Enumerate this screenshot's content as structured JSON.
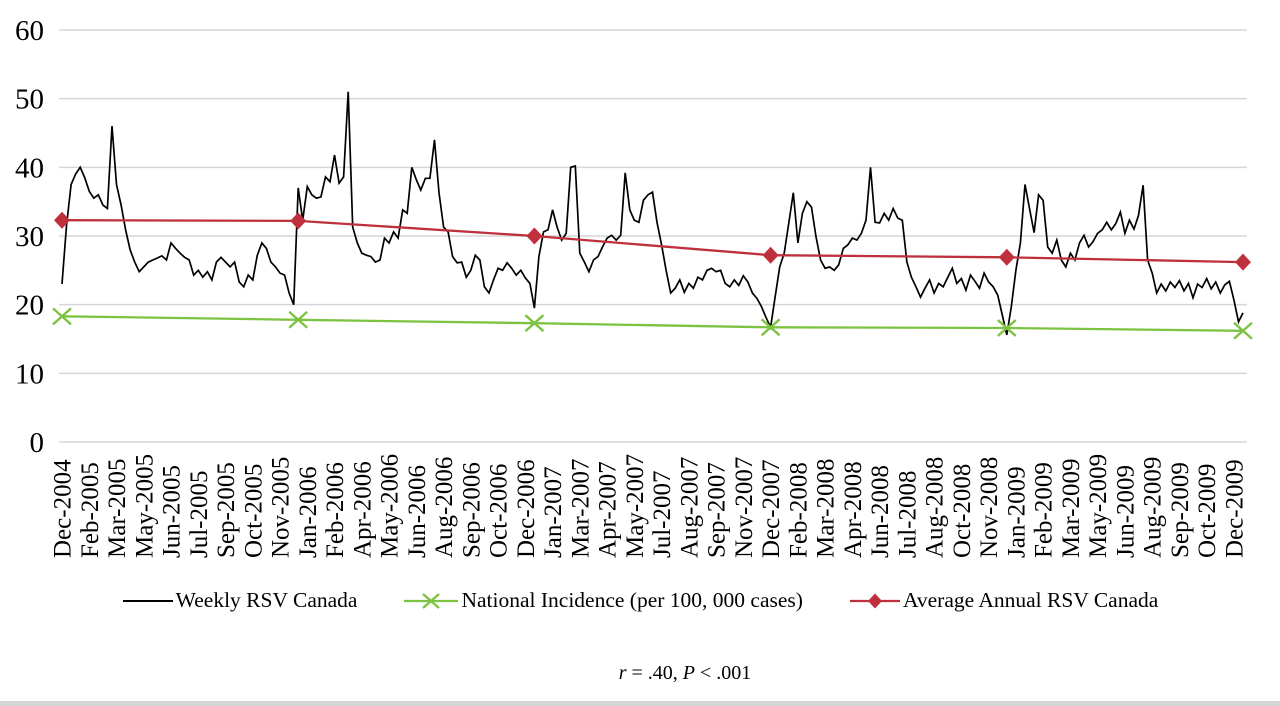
{
  "window": {
    "background": "#FFFFFF",
    "bottom_strip_color": "#D5D5D5"
  },
  "chart_data": {
    "type": "line",
    "title": "",
    "xlabel": "",
    "ylabel": "",
    "ylim": [
      0,
      60
    ],
    "y_ticks": [
      0,
      10,
      20,
      30,
      40,
      50,
      60
    ],
    "grid": true,
    "gridline_color": "#D6D6D6",
    "legend_position": "bottom",
    "x_unit": "week",
    "weeks_span": 260,
    "x_tick_every_weeks": 6,
    "x_tick_labels": [
      "Dec-2004",
      "Feb-2005",
      "Mar-2005",
      "May-2005",
      "Jun-2005",
      "Jul-2005",
      "Sep-2005",
      "Oct-2005",
      "Nov-2005",
      "Jan-2006",
      "Feb-2006",
      "Apr-2006",
      "May-2006",
      "Jun-2006",
      "Aug-2006",
      "Sep-2006",
      "Oct-2006",
      "Dec-2006",
      "Jan-2007",
      "Mar-2007",
      "Apr-2007",
      "May-2007",
      "Jul-2007",
      "Aug-2007",
      "Sep-2007",
      "Nov-2007",
      "Dec-2007",
      "Feb-2008",
      "Mar-2008",
      "Apr-2008",
      "Jun-2008",
      "Jul-2008",
      "Aug-2008",
      "Oct-2008",
      "Nov-2008",
      "Jan-2009",
      "Feb-2009",
      "Mar-2009",
      "May-2009",
      "Jun-2009",
      "Aug-2009",
      "Sep-2009",
      "Oct-2009",
      "Dec-2009"
    ],
    "series": [
      {
        "name": "Weekly RSV Canada",
        "color": "#000000",
        "marker": "none",
        "line_width": 1.7,
        "values": [
          23,
          31.5,
          37.5,
          39,
          40,
          38.5,
          36.5,
          35.5,
          36,
          34.5,
          34,
          46,
          37.5,
          34.5,
          30.9,
          28,
          26.2,
          24.8,
          25.5,
          26.2,
          26.5,
          26.8,
          27.1,
          26.5,
          29,
          28.2,
          27.5,
          26.9,
          26.5,
          24.3,
          25,
          24,
          24.8,
          23.6,
          26.2,
          26.9,
          26.2,
          25.5,
          26.2,
          23.3,
          22.6,
          24.3,
          23.6,
          27.2,
          29,
          28.2,
          26.2,
          25.5,
          24.6,
          24.3,
          21.7,
          20,
          37,
          32.3,
          37.2,
          36,
          35.5,
          35.7,
          38.6,
          37.9,
          41.8,
          37.7,
          38.6,
          51,
          31.3,
          29,
          27.5,
          27.2,
          27,
          26.2,
          26.5,
          29.7,
          29,
          30.6,
          29.7,
          33.8,
          33.3,
          40,
          38.2,
          36.7,
          38.4,
          38.4,
          44,
          36.3,
          31.3,
          30.6,
          27,
          26.1,
          26.2,
          24,
          25,
          27.2,
          26.5,
          22.6,
          21.7,
          23.6,
          25.3,
          25,
          26.1,
          25.3,
          24.3,
          25,
          23.9,
          23.1,
          19.5,
          27,
          30.6,
          30.9,
          33.8,
          31.3,
          29.4,
          30.4,
          40,
          40.2,
          27.5,
          26.2,
          24.8,
          26.5,
          27,
          28.4,
          29.7,
          30.1,
          29.4,
          30.1,
          39.2,
          33.8,
          32.3,
          32,
          35.2,
          36,
          36.4,
          32,
          28.7,
          25,
          21.7,
          22.4,
          23.6,
          21.8,
          23.1,
          22.4,
          24,
          23.6,
          25,
          25.3,
          24.8,
          25,
          23.1,
          22.6,
          23.6,
          22.8,
          24.2,
          23.3,
          21.7,
          20.9,
          19.7,
          18.1,
          16.7,
          21.1,
          25.5,
          27.5,
          31.9,
          36.3,
          29,
          33.3,
          35,
          34.2,
          29.9,
          26.5,
          25.3,
          25.5,
          25,
          25.8,
          28.2,
          28.7,
          29.7,
          29.4,
          30.4,
          32.3,
          40,
          32,
          31.9,
          33.3,
          32.3,
          34,
          32.6,
          32.3,
          26.2,
          24,
          22.6,
          21.1,
          22.4,
          23.6,
          21.7,
          23.1,
          22.6,
          24,
          25.3,
          23.1,
          23.8,
          22.1,
          24.3,
          23.4,
          22.4,
          24.6,
          23.3,
          22.6,
          21.4,
          18.5,
          15.6,
          19.7,
          25,
          29,
          37.5,
          34,
          30.5,
          36,
          35.2,
          28.4,
          27.5,
          29.4,
          26.5,
          25.5,
          27.5,
          26.5,
          29,
          30.1,
          28.4,
          29.2,
          30.4,
          30.9,
          32,
          30.9,
          31.8,
          33.5,
          30.4,
          32.3,
          31,
          33,
          37.4,
          26.5,
          24.6,
          21.7,
          23,
          22,
          23.3,
          22.5,
          23.5,
          22,
          23.1,
          21,
          23,
          22.5,
          23.8,
          22.3,
          23.3,
          21.7,
          22.9,
          23.4,
          20.7,
          17.5,
          18.8
        ]
      },
      {
        "name": "National Incidence (per 100, 000 cases)",
        "color": "#7DC342",
        "marker": "x",
        "line_width": 2.3,
        "x_weeks": [
          0,
          52,
          104,
          156,
          208,
          260
        ],
        "values": [
          18.3,
          17.8,
          17.3,
          16.7,
          16.6,
          16.2
        ]
      },
      {
        "name": "Average Annual RSV Canada",
        "color": "#BE303C",
        "marker": "diamond",
        "line_width": 2.3,
        "x_weeks": [
          0,
          52,
          104,
          156,
          208,
          260
        ],
        "values": [
          32.3,
          32.2,
          30,
          27.2,
          26.9,
          26.2
        ]
      }
    ],
    "annotation": "r = .40, P < .001"
  },
  "caption": {
    "segments": [
      {
        "text": "r",
        "italic": true
      },
      {
        "text": " = .40, ",
        "italic": false
      },
      {
        "text": "P",
        "italic": true
      },
      {
        "text": " < .001",
        "italic": false
      }
    ]
  }
}
